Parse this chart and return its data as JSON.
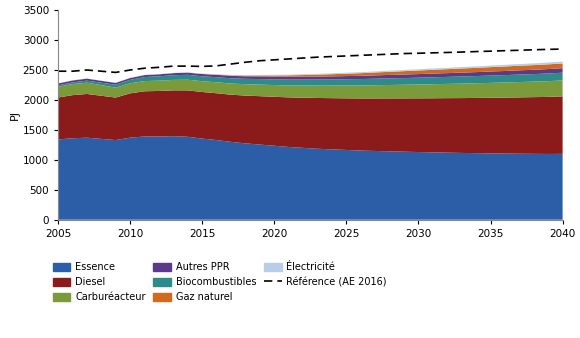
{
  "years": [
    2005,
    2006,
    2007,
    2008,
    2009,
    2010,
    2011,
    2012,
    2013,
    2014,
    2015,
    2016,
    2017,
    2018,
    2019,
    2020,
    2021,
    2022,
    2023,
    2024,
    2025,
    2026,
    2027,
    2028,
    2029,
    2030,
    2031,
    2032,
    2033,
    2034,
    2035,
    2036,
    2037,
    2038,
    2039,
    2040
  ],
  "essence": [
    1340,
    1360,
    1370,
    1350,
    1330,
    1370,
    1390,
    1390,
    1395,
    1385,
    1355,
    1330,
    1300,
    1275,
    1255,
    1235,
    1215,
    1200,
    1185,
    1175,
    1165,
    1155,
    1148,
    1142,
    1136,
    1130,
    1125,
    1120,
    1115,
    1112,
    1108,
    1105,
    1102,
    1100,
    1098,
    1100
  ],
  "diesel": [
    700,
    720,
    730,
    720,
    710,
    740,
    755,
    760,
    765,
    775,
    778,
    782,
    788,
    798,
    808,
    818,
    828,
    838,
    848,
    855,
    862,
    870,
    877,
    884,
    890,
    897,
    903,
    910,
    916,
    922,
    928,
    935,
    941,
    947,
    953,
    960
  ],
  "carburacteur": [
    180,
    185,
    188,
    178,
    165,
    168,
    170,
    172,
    175,
    178,
    180,
    183,
    186,
    190,
    193,
    196,
    200,
    203,
    207,
    210,
    214,
    217,
    221,
    224,
    228,
    231,
    235,
    238,
    242,
    245,
    249,
    252,
    256,
    259,
    263,
    266
  ],
  "biocombustibles": [
    25,
    28,
    35,
    40,
    50,
    58,
    68,
    73,
    78,
    82,
    82,
    85,
    88,
    90,
    93,
    95,
    97,
    99,
    101,
    103,
    105,
    107,
    109,
    111,
    112,
    114,
    116,
    117,
    119,
    120,
    122,
    123,
    125,
    126,
    128,
    129
  ],
  "autres_ppr": [
    30,
    32,
    33,
    32,
    30,
    30,
    32,
    33,
    35,
    36,
    38,
    39,
    41,
    42,
    44,
    45,
    47,
    48,
    50,
    51,
    53,
    54,
    56,
    57,
    59,
    60,
    62,
    63,
    65,
    66,
    68,
    69,
    71,
    72,
    74,
    75
  ],
  "gaz_naturel": [
    0,
    0,
    0,
    0,
    0,
    0,
    0,
    0,
    0,
    0,
    2,
    5,
    8,
    12,
    16,
    20,
    24,
    28,
    32,
    36,
    40,
    44,
    48,
    52,
    56,
    60,
    63,
    66,
    69,
    71,
    73,
    75,
    77,
    78,
    79,
    80
  ],
  "electricite": [
    3,
    3,
    3,
    3,
    3,
    4,
    4,
    4,
    5,
    5,
    6,
    7,
    8,
    9,
    10,
    11,
    12,
    13,
    14,
    15,
    16,
    17,
    18,
    19,
    20,
    21,
    22,
    23,
    24,
    25,
    26,
    27,
    28,
    29,
    30,
    31
  ],
  "reference": [
    2480,
    2480,
    2500,
    2480,
    2460,
    2500,
    2530,
    2545,
    2565,
    2565,
    2560,
    2570,
    2600,
    2630,
    2655,
    2670,
    2685,
    2700,
    2715,
    2725,
    2735,
    2745,
    2755,
    2765,
    2775,
    2780,
    2787,
    2793,
    2800,
    2808,
    2815,
    2823,
    2830,
    2838,
    2845,
    2850
  ],
  "colors": {
    "essence": "#2B5EA7",
    "diesel": "#8B1A1A",
    "carburacteur": "#7B9B3A",
    "biocombustibles": "#2E8B8B",
    "autres_ppr": "#5B3A8A",
    "gaz_naturel": "#D2691E",
    "electricite": "#B8CEE8"
  },
  "ylim": [
    0,
    3500
  ],
  "yticks": [
    0,
    500,
    1000,
    1500,
    2000,
    2500,
    3000,
    3500
  ],
  "ylabel": "PJ",
  "xlim": [
    2005,
    2040
  ],
  "xticks": [
    2005,
    2010,
    2015,
    2020,
    2025,
    2030,
    2035,
    2040
  ]
}
